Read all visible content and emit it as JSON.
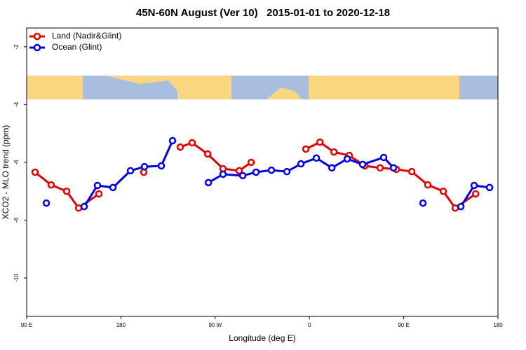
{
  "chart_data": {
    "type": "line",
    "title": "45N-60N August (Ver 10)   2015-01-01 to 2020-12-18",
    "xlabel": "Longitude (deg E)",
    "ylabel": "XCO2 - MLO trend (ppm)",
    "xlim": [
      90,
      540
    ],
    "xticks": [
      {
        "value": 90,
        "label": "90 E"
      },
      {
        "value": 180,
        "label": "180"
      },
      {
        "value": 270,
        "label": "90 W"
      },
      {
        "value": 360,
        "label": "0"
      },
      {
        "value": 450,
        "label": "90 E"
      },
      {
        "value": 540,
        "label": "180"
      }
    ],
    "ylim": [
      -11.33,
      -1.35
    ],
    "yticks": [
      -2,
      -4,
      -6,
      -8,
      -10
    ],
    "legend": "top-left",
    "series": [
      {
        "name": "Land (Nadir&Glint)",
        "color": "#e00000",
        "x": [
          98,
          113.4,
          128.2,
          139.6,
          159,
          null,
          201.8,
          null,
          236.7,
          248,
          262.8,
          277.5,
          292.9,
          304.3,
          null,
          356.5,
          370,
          383.4,
          398,
          412.8,
          427.5,
          443,
          457.7,
          473,
          487.8,
          499.2,
          518.7
        ],
        "values": [
          -6.34,
          -6.78,
          -7.0,
          -7.58,
          -7.09,
          null,
          -6.34,
          null,
          -5.47,
          -5.32,
          -5.71,
          -6.22,
          -6.29,
          -6.0,
          null,
          -5.54,
          -5.3,
          -5.64,
          -5.76,
          -6.12,
          -6.19,
          -6.24,
          -6.32,
          -6.78,
          -7.0,
          -7.58,
          -7.09
        ]
      },
      {
        "name": "Ocean (Glint)",
        "color": "#0000e0",
        "x": [
          108.8,
          null,
          144.9,
          157.6,
          172.4,
          189.1,
          202.5,
          218.6,
          229.3,
          null,
          263.5,
          277.5,
          296.3,
          309,
          323.7,
          338.5,
          351.9,
          366.6,
          381.4,
          396.1,
          410.8,
          430.9,
          440.3,
          null,
          468.4,
          null,
          504.6,
          517.3,
          532
        ],
        "values": [
          -7.41,
          null,
          -7.53,
          -6.8,
          -6.87,
          -6.29,
          -6.15,
          -6.12,
          -5.25,
          null,
          -6.7,
          -6.41,
          -6.46,
          -6.34,
          -6.27,
          -6.32,
          -6.05,
          -5.85,
          -6.19,
          -5.88,
          -6.07,
          -5.83,
          -6.19,
          null,
          -7.41,
          null,
          -7.53,
          -6.8,
          -6.87
        ]
      }
    ]
  }
}
